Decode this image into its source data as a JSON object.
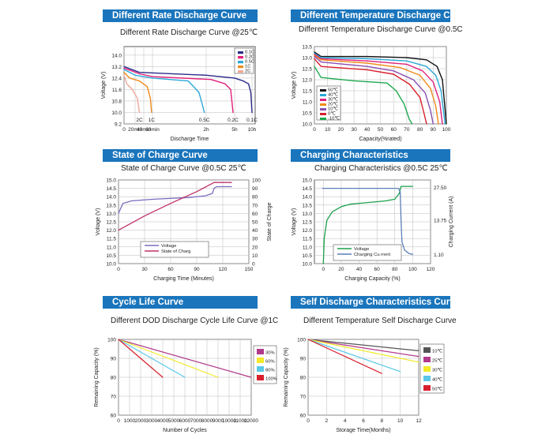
{
  "panels": [
    {
      "banner": "Different Rate Discharge Curve",
      "chart_data": {
        "type": "line",
        "title": "Different Rate Discharge Curve @25℃",
        "xlabel": "Discharge Time",
        "ylabel": "Voltage (V)",
        "ylim": [
          9.2,
          14.6
        ],
        "yticks": [
          "9.2",
          "10.0",
          "10.8",
          "11.6",
          "12.4",
          "13.2",
          "14.0"
        ],
        "xticks": [
          "0",
          "20min",
          "40min",
          "60min",
          "2h",
          "5h",
          "10h"
        ],
        "x_scale": "nonlinear (minutes)",
        "grid": true,
        "legend_position": "top-right",
        "series": [
          {
            "name": "0.1C",
            "color": "#2a2a8a",
            "points": [
              [
                0,
                13.2
              ],
              [
                30,
                12.8
              ],
              [
                120,
                12.6
              ],
              [
                300,
                12.4
              ],
              [
                450,
                12.2
              ],
              [
                540,
                12.0
              ],
              [
                580,
                11.4
              ],
              [
                600,
                10.0
              ]
            ],
            "end_label": "0.1C"
          },
          {
            "name": "0.2C",
            "color": "#e0207a",
            "points": [
              [
                0,
                13.1
              ],
              [
                30,
                12.7
              ],
              [
                60,
                12.5
              ],
              [
                150,
                12.3
              ],
              [
                240,
                12.0
              ],
              [
                275,
                11.6
              ],
              [
                290,
                10.0
              ]
            ],
            "end_label": "0.2C"
          },
          {
            "name": "0.5C",
            "color": "#2ba8d8",
            "points": [
              [
                0,
                13.0
              ],
              [
                20,
                12.6
              ],
              [
                60,
                12.4
              ],
              [
                100,
                12.2
              ],
              [
                112,
                11.4
              ],
              [
                118,
                10.0
              ]
            ],
            "end_label": "0.5C"
          },
          {
            "name": "1C",
            "color": "#f08a1a",
            "points": [
              [
                0,
                12.8
              ],
              [
                10,
                12.4
              ],
              [
                30,
                12.2
              ],
              [
                48,
                11.8
              ],
              [
                55,
                11.0
              ],
              [
                58,
                10.0
              ]
            ],
            "end_label": "1C"
          },
          {
            "name": "2C",
            "color": "#f2a898",
            "points": [
              [
                0,
                12.6
              ],
              [
                5,
                12.0
              ],
              [
                15,
                11.6
              ],
              [
                25,
                11.0
              ],
              [
                30,
                10.0
              ]
            ],
            "end_label": "2C"
          }
        ]
      }
    },
    {
      "banner": "Different Temperature Discharge Curve",
      "chart_data": {
        "type": "line",
        "title": "Different Temperature Discharge Curve @0.5C",
        "xlabel": "Capacity(%rated)",
        "ylabel": "Voltage (V)",
        "ylim": [
          10.0,
          13.5
        ],
        "xlim": [
          0,
          100
        ],
        "yticks": [
          "10.0",
          "10.5",
          "11.0",
          "11.5",
          "12.0",
          "12.5",
          "13.0",
          "13.5"
        ],
        "xticks": [
          "0",
          "10",
          "20",
          "30",
          "40",
          "50",
          "60",
          "70",
          "80",
          "90",
          "100"
        ],
        "grid": true,
        "legend_position": "bottom-left",
        "series": [
          {
            "name": "50℃",
            "color": "#111111",
            "points": [
              [
                0,
                13.25
              ],
              [
                5,
                13.05
              ],
              [
                40,
                13.05
              ],
              [
                70,
                13.0
              ],
              [
                85,
                12.9
              ],
              [
                93,
                12.6
              ],
              [
                97,
                12.0
              ],
              [
                100,
                10.0
              ]
            ]
          },
          {
            "name": "40℃",
            "color": "#2ba8d8",
            "points": [
              [
                0,
                13.2
              ],
              [
                5,
                13.0
              ],
              [
                40,
                12.95
              ],
              [
                70,
                12.85
              ],
              [
                85,
                12.6
              ],
              [
                92,
                12.2
              ],
              [
                96,
                11.5
              ],
              [
                99,
                10.0
              ]
            ]
          },
          {
            "name": "30℃",
            "color": "#e0207a",
            "points": [
              [
                0,
                13.15
              ],
              [
                5,
                12.95
              ],
              [
                40,
                12.85
              ],
              [
                70,
                12.7
              ],
              [
                82,
                12.4
              ],
              [
                90,
                11.9
              ],
              [
                95,
                11.0
              ],
              [
                97,
                10.0
              ]
            ]
          },
          {
            "name": "20℃",
            "color": "#f08a1a",
            "points": [
              [
                0,
                13.1
              ],
              [
                5,
                12.9
              ],
              [
                40,
                12.75
              ],
              [
                65,
                12.55
              ],
              [
                80,
                12.2
              ],
              [
                88,
                11.6
              ],
              [
                92,
                10.8
              ],
              [
                94,
                10.0
              ]
            ]
          },
          {
            "name": "10℃",
            "color": "#8a4fb0",
            "points": [
              [
                0,
                13.05
              ],
              [
                5,
                12.8
              ],
              [
                40,
                12.6
              ],
              [
                60,
                12.4
              ],
              [
                75,
                12.0
              ],
              [
                84,
                11.4
              ],
              [
                88,
                10.6
              ],
              [
                90,
                10.0
              ]
            ]
          },
          {
            "name": "0℃",
            "color": "#d81e2c",
            "points": [
              [
                0,
                12.95
              ],
              [
                5,
                12.6
              ],
              [
                40,
                12.45
              ],
              [
                60,
                12.25
              ],
              [
                72,
                11.8
              ],
              [
                80,
                11.2
              ],
              [
                83,
                10.5
              ],
              [
                85,
                10.0
              ]
            ]
          },
          {
            "name": "-10℃",
            "color": "#1ca84e",
            "points": [
              [
                0,
                12.6
              ],
              [
                5,
                12.1
              ],
              [
                30,
                11.95
              ],
              [
                55,
                11.85
              ],
              [
                62,
                11.5
              ],
              [
                68,
                10.9
              ],
              [
                72,
                10.2
              ],
              [
                74,
                10.0
              ]
            ]
          }
        ]
      }
    },
    {
      "banner": "State of Charge Curve",
      "chart_data": {
        "type": "line",
        "title": "State of Charge Curve @0.5C 25℃",
        "xlabel": "Charging Time (Minutes)",
        "ylabel": "Voltage (V)",
        "y2label": "State of Charge",
        "ylim": [
          10.0,
          15.0
        ],
        "y2lim": [
          0,
          100
        ],
        "xlim": [
          0,
          150
        ],
        "yticks": [
          "10.0",
          "10.5",
          "11.0",
          "11.5",
          "12.0",
          "12.5",
          "13.0",
          "13.5",
          "14.0",
          "14.5",
          "15.0"
        ],
        "y2ticks": [
          "0",
          "10",
          "20",
          "30",
          "40",
          "50",
          "60",
          "70",
          "80",
          "90",
          "100"
        ],
        "xticks": [
          "0",
          "30",
          "60",
          "90",
          "120",
          "150"
        ],
        "grid": true,
        "legend_position": "bottom-center",
        "series": [
          {
            "name": "Voltage",
            "color": "#7b6bbd",
            "axis": "left",
            "points": [
              [
                0,
                13.0
              ],
              [
                5,
                13.6
              ],
              [
                15,
                13.75
              ],
              [
                40,
                13.85
              ],
              [
                80,
                13.95
              ],
              [
                100,
                14.05
              ],
              [
                108,
                14.2
              ],
              [
                110,
                14.5
              ],
              [
                113,
                14.6
              ],
              [
                130,
                14.6
              ]
            ]
          },
          {
            "name": "State of Charg",
            "color": "#c0306a",
            "axis": "right",
            "points": [
              [
                0,
                40
              ],
              [
                30,
                57
              ],
              [
                60,
                72
              ],
              [
                90,
                86
              ],
              [
                110,
                97
              ],
              [
                113,
                97
              ],
              [
                130,
                97
              ]
            ]
          }
        ]
      }
    },
    {
      "banner": "Charging Characteristics",
      "chart_data": {
        "type": "line",
        "title": "Charging Characteristics @0.5C 25℃",
        "xlabel": "Charging Capacity (%)",
        "ylabel": "Voltage (V)",
        "y2label": "Charging Current (A)",
        "ylim": [
          10.0,
          15.0
        ],
        "xlim": [
          -10,
          120
        ],
        "yticks": [
          "10.0",
          "10.5",
          "11.0",
          "11.5",
          "12.0",
          "12.5",
          "13.0",
          "13.5",
          "14.0",
          "14.5",
          "15.0"
        ],
        "y2ticks": [
          "1.10",
          "13.75",
          "27.50"
        ],
        "xticks": [
          "0",
          "20",
          "40",
          "60",
          "80",
          "100",
          "120"
        ],
        "grid": true,
        "legend_position": "bottom-center",
        "series": [
          {
            "name": "Voltage",
            "color": "#1aa04a",
            "axis": "left",
            "points": [
              [
                0,
                10.0
              ],
              [
                1,
                11.5
              ],
              [
                4,
                12.6
              ],
              [
                10,
                13.1
              ],
              [
                20,
                13.4
              ],
              [
                30,
                13.55
              ],
              [
                50,
                13.65
              ],
              [
                70,
                13.75
              ],
              [
                80,
                13.85
              ],
              [
                85,
                14.2
              ],
              [
                87,
                14.62
              ],
              [
                100,
                14.62
              ]
            ]
          },
          {
            "name": "Charging Cu rrent",
            "color": "#5b7fb8",
            "axis": "right",
            "points": [
              [
                -1,
                14.5
              ],
              [
                20,
                14.5
              ],
              [
                60,
                14.5
              ],
              [
                84,
                14.5
              ],
              [
                86,
                14.3
              ],
              [
                87,
                12.5
              ],
              [
                88,
                11.3
              ],
              [
                91,
                10.8
              ],
              [
                96,
                10.6
              ],
              [
                100,
                10.55
              ]
            ]
          }
        ]
      }
    },
    {
      "banner": "Cycle Life Curve",
      "chart_data": {
        "type": "line",
        "title": "Different DOD Discharge Cycle Life Curve @1C",
        "xlabel": "Number of Cycles",
        "ylabel": "Remaining Capacity (%)",
        "ylim": [
          60,
          100
        ],
        "xlim": [
          0,
          12000
        ],
        "yticks": [
          "60",
          "70",
          "80",
          "90",
          "100"
        ],
        "xticks": [
          "0",
          "1000",
          "2000",
          "3000",
          "4000",
          "5000",
          "6000",
          "7000",
          "8000",
          "9000",
          "10000",
          "11000",
          "12000"
        ],
        "grid": true,
        "legend_position": "right",
        "series": [
          {
            "name": "30%",
            "color": "#b23a8a",
            "points": [
              [
                0,
                100
              ],
              [
                12000,
                80
              ]
            ]
          },
          {
            "name": "60%",
            "color": "#f2ea2a",
            "points": [
              [
                0,
                100
              ],
              [
                9000,
                80
              ]
            ]
          },
          {
            "name": "80%",
            "color": "#5ac8e8",
            "points": [
              [
                0,
                100
              ],
              [
                6000,
                80
              ]
            ]
          },
          {
            "name": "100%",
            "color": "#d81e2c",
            "points": [
              [
                0,
                100
              ],
              [
                4000,
                80
              ]
            ]
          }
        ]
      }
    },
    {
      "banner": "Self Discharge Characteristics Curve",
      "chart_data": {
        "type": "line",
        "title": "Different Temperature Self Discharge Curve",
        "xlabel": "Storage Time(Months)",
        "ylabel": "Remaining Capacity (%)",
        "ylim": [
          60,
          100
        ],
        "xlim": [
          0,
          12
        ],
        "yticks": [
          "60",
          "70",
          "80",
          "90",
          "100"
        ],
        "xticks": [
          "0",
          "2",
          "4",
          "6",
          "8",
          "10",
          "12"
        ],
        "grid": true,
        "legend_position": "right",
        "series": [
          {
            "name": "10℃",
            "color": "#555555",
            "points": [
              [
                0,
                100
              ],
              [
                12,
                94
              ]
            ]
          },
          {
            "name": "25℃",
            "color": "#b23a8a",
            "points": [
              [
                0,
                100
              ],
              [
                12,
                91
              ]
            ]
          },
          {
            "name": "30℃",
            "color": "#f2ea2a",
            "points": [
              [
                0,
                100
              ],
              [
                12,
                88
              ]
            ]
          },
          {
            "name": "40℃",
            "color": "#5ac8e8",
            "points": [
              [
                0,
                100
              ],
              [
                10,
                83
              ]
            ]
          },
          {
            "name": "50℃",
            "color": "#d81e2c",
            "points": [
              [
                0,
                100
              ],
              [
                8,
                82
              ]
            ]
          }
        ]
      }
    }
  ]
}
